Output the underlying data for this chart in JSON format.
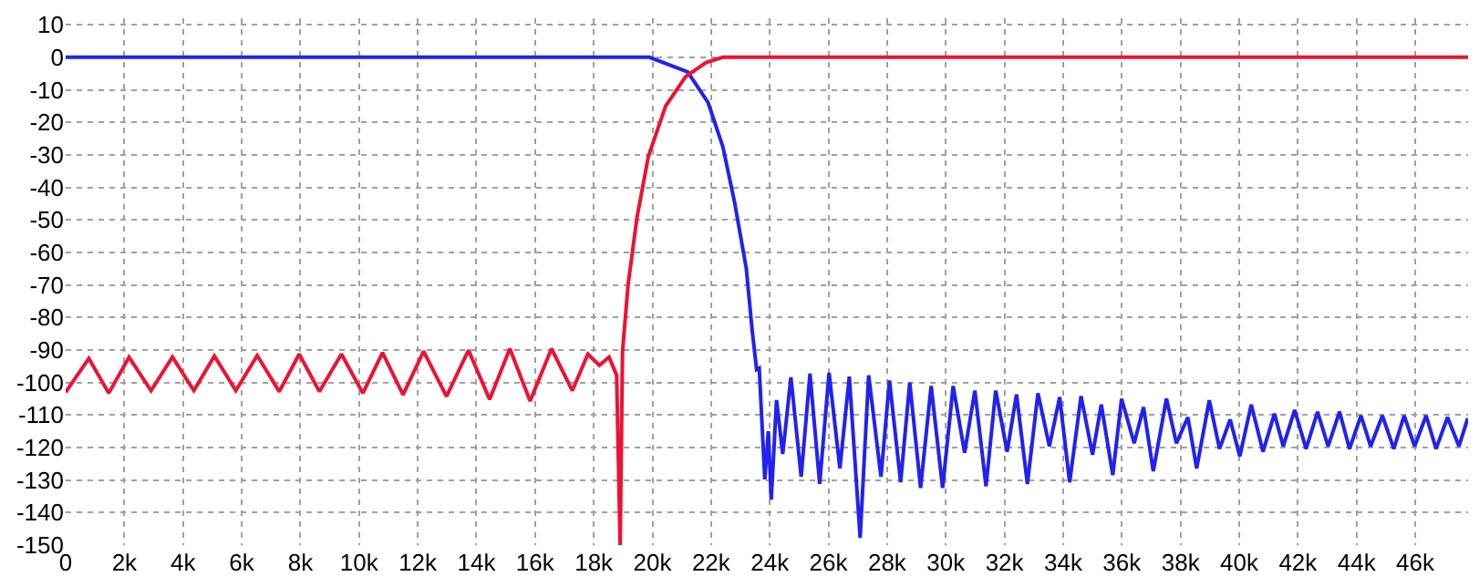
{
  "chart_data": {
    "type": "line",
    "xlim": [
      0,
      47800
    ],
    "ylim": [
      -150,
      12
    ],
    "xticks": [
      0,
      {
        "value": 2000,
        "label": "2k"
      },
      {
        "value": 4000,
        "label": "4k"
      },
      {
        "value": 6000,
        "label": "6k"
      },
      {
        "value": 8000,
        "label": "8k"
      },
      {
        "value": 10000,
        "label": "10k"
      },
      {
        "value": 12000,
        "label": "12k"
      },
      {
        "value": 14000,
        "label": "14k"
      },
      {
        "value": 16000,
        "label": "16k"
      },
      {
        "value": 18000,
        "label": "18k"
      },
      {
        "value": 20000,
        "label": "20k"
      },
      {
        "value": 22000,
        "label": "22k"
      },
      {
        "value": 24000,
        "label": "24k"
      },
      {
        "value": 26000,
        "label": "26k"
      },
      {
        "value": 28000,
        "label": "28k"
      },
      {
        "value": 30000,
        "label": "30k"
      },
      {
        "value": 32000,
        "label": "32k"
      },
      {
        "value": 34000,
        "label": "34k"
      },
      {
        "value": 36000,
        "label": "36k"
      },
      {
        "value": 38000,
        "label": "38k"
      },
      {
        "value": 40000,
        "label": "40k"
      },
      {
        "value": 42000,
        "label": "42k"
      },
      {
        "value": 44000,
        "label": "44k"
      },
      {
        "value": 46000,
        "label": "46k"
      }
    ],
    "yticks": [
      10,
      0,
      -10,
      -20,
      -30,
      -40,
      -50,
      -60,
      -70,
      -80,
      -90,
      -100,
      -110,
      -120,
      -130,
      -140,
      -150
    ],
    "grid": true,
    "marker": "none",
    "line_style": "solid",
    "series": [
      {
        "color": "#2222ee",
        "x": [
          0,
          19900,
          21200,
          21900,
          22400,
          22800,
          23200,
          23400,
          23550,
          23640,
          23830,
          23950,
          24050,
          24230,
          24440,
          24720,
          25070,
          25370,
          25700,
          26020,
          26390,
          26710,
          27080,
          27370,
          27790,
          28080,
          28460,
          28770,
          29140,
          29500,
          29890,
          30250,
          30640,
          30990,
          31370,
          31700,
          32090,
          32410,
          32780,
          33140,
          33530,
          33880,
          34220,
          34610,
          35000,
          35300,
          35690,
          35990,
          36420,
          36740,
          37070,
          37520,
          37860,
          38250,
          38550,
          38980,
          39330,
          39690,
          40020,
          40410,
          40810,
          41200,
          41500,
          41890,
          42280,
          42670,
          43030,
          43420,
          43760,
          44150,
          44480,
          44880,
          45270,
          45620,
          45980,
          46370,
          46710,
          47100,
          47490,
          47790
        ],
        "values": [
          0,
          0,
          -4.5,
          -14,
          -27.5,
          -44.6,
          -65,
          -84,
          -96,
          -95.6,
          -129.8,
          -115,
          -136,
          -105.4,
          -122,
          -98.4,
          -129,
          -97.3,
          -131.2,
          -97,
          -126.4,
          -98.2,
          -147.8,
          -97.8,
          -129,
          -99.4,
          -130.7,
          -100,
          -132.4,
          -101.1,
          -132.4,
          -101.1,
          -121.6,
          -102.5,
          -131.9,
          -102.5,
          -121.3,
          -103.7,
          -131.2,
          -103.3,
          -119.6,
          -104.5,
          -130.7,
          -104.2,
          -122.2,
          -106.8,
          -128.5,
          -105,
          -118.7,
          -107.6,
          -127.3,
          -105,
          -118.7,
          -110.7,
          -126.4,
          -105.5,
          -120.4,
          -111.4,
          -122.7,
          -106.8,
          -121.3,
          -109.6,
          -119.6,
          -108.5,
          -120.4,
          -109,
          -119.6,
          -109,
          -120.4,
          -110.2,
          -119.6,
          -110.2,
          -120.4,
          -110.2,
          -119.6,
          -110.2,
          -120.4,
          -110.7,
          -119.6,
          -111
        ]
      },
      {
        "color": "#ee1133",
        "x": [
          0,
          790,
          1470,
          2160,
          2910,
          3640,
          4370,
          5070,
          5800,
          6530,
          7280,
          7960,
          8650,
          9400,
          10130,
          10800,
          11500,
          12200,
          12980,
          13730,
          14450,
          15140,
          15830,
          16560,
          17270,
          17800,
          18190,
          18520,
          18780,
          18900,
          18980,
          19170,
          19470,
          19860,
          20450,
          21130,
          21830,
          22400,
          47800
        ],
        "values": [
          -103,
          -92.6,
          -103.3,
          -92.2,
          -102.5,
          -92.2,
          -102.5,
          -91.9,
          -102.5,
          -91.7,
          -102.8,
          -91.3,
          -102.8,
          -91.3,
          -103.3,
          -90.8,
          -103.8,
          -90.4,
          -104.3,
          -90.1,
          -105.2,
          -89.6,
          -105.7,
          -89.6,
          -102.5,
          -91.3,
          -94.7,
          -92.2,
          -97.8,
          -150,
          -90.5,
          -70,
          -49.5,
          -30.5,
          -15,
          -6,
          -1.6,
          0,
          0
        ]
      }
    ]
  }
}
